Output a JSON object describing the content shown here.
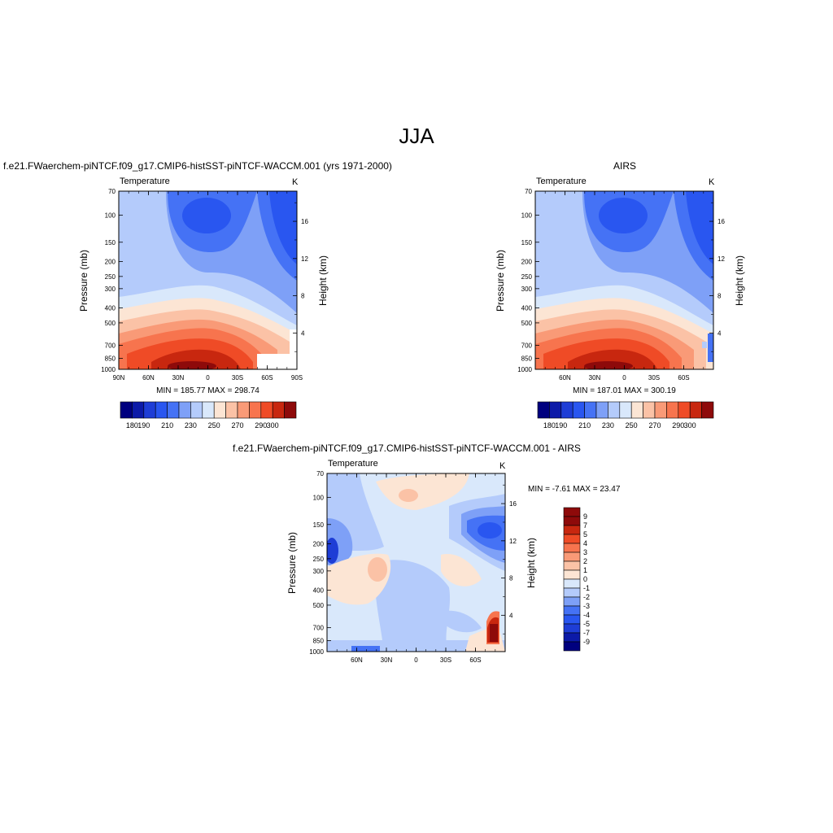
{
  "figure": {
    "title": "JJA"
  },
  "chart_data": [
    {
      "type": "heatmap",
      "id": "model",
      "title": "f.e21.FWaerchem-piNTCF.f09_g17.CMIP6-histSST-piNTCF-WACCM.001 (yrs 1971-2000)",
      "variable": "Temperature",
      "units": "K",
      "ylabel": "Pressure (mb)",
      "y2label": "Height (km)",
      "x_ticks": [
        "90N",
        "60N",
        "30N",
        "0",
        "30S",
        "60S",
        "90S"
      ],
      "y_ticks": [
        "70",
        "100",
        "150",
        "200",
        "250",
        "300",
        "400",
        "500",
        "700",
        "850",
        "1000"
      ],
      "y2_ticks": [
        "16",
        "12",
        "8",
        "4"
      ],
      "stats": "MIN = 185.77  MAX = 298.74",
      "min": 185.77,
      "max": 298.74,
      "colorbar_labels": [
        "180",
        "190",
        "210",
        "230",
        "250",
        "270",
        "290",
        "300"
      ]
    },
    {
      "type": "heatmap",
      "id": "obs",
      "title": "AIRS",
      "variable": "Temperature",
      "units": "K",
      "ylabel": "Pressure (mb)",
      "y2label": "Height (km)",
      "x_ticks": [
        "60N",
        "30N",
        "0",
        "30S",
        "60S"
      ],
      "y_ticks": [
        "70",
        "100",
        "150",
        "200",
        "250",
        "300",
        "400",
        "500",
        "700",
        "850",
        "1000"
      ],
      "y2_ticks": [
        "16",
        "12",
        "8",
        "4"
      ],
      "stats": "MIN = 187.01  MAX = 300.19",
      "min": 187.01,
      "max": 300.19,
      "colorbar_labels": [
        "180",
        "190",
        "210",
        "230",
        "250",
        "270",
        "290",
        "300"
      ]
    },
    {
      "type": "heatmap",
      "id": "diff",
      "title": "f.e21.FWaerchem-piNTCF.f09_g17.CMIP6-histSST-piNTCF-WACCM.001 - AIRS",
      "variable": "Temperature",
      "units": "K",
      "ylabel": "Pressure (mb)",
      "y2label": "Height (km)",
      "x_ticks": [
        "60N",
        "30N",
        "0",
        "30S",
        "60S"
      ],
      "y_ticks": [
        "70",
        "100",
        "150",
        "200",
        "250",
        "300",
        "400",
        "500",
        "700",
        "850",
        "1000"
      ],
      "y2_ticks": [
        "16",
        "12",
        "8",
        "4"
      ],
      "stats": "MIN =  -7.61  MAX =  23.47",
      "min": -7.61,
      "max": 23.47,
      "colorbar_labels": [
        "9",
        "7",
        "5",
        "4",
        "3",
        "2",
        "1",
        "0",
        "-1",
        "-2",
        "-3",
        "-4",
        "-5",
        "-7",
        "-9"
      ]
    }
  ],
  "colors": {
    "temp_scale": [
      "#00007f",
      "#0c1aa8",
      "#1e3dd6",
      "#2956f0",
      "#4572f5",
      "#7ea0f7",
      "#b4cbfb",
      "#d9e8fb",
      "#fce5d4",
      "#fbc2a6",
      "#f99a77",
      "#f7744e",
      "#ef4b26",
      "#c8270f",
      "#8e0a0a"
    ],
    "diff_scale": [
      "#8e0a0a",
      "#c8270f",
      "#ef4b26",
      "#f7744e",
      "#f99a77",
      "#fbc2a6",
      "#fce5d4",
      "#d9e8fb",
      "#b4cbfb",
      "#7ea0f7",
      "#4572f5",
      "#2956f0",
      "#1e3dd6",
      "#0c1aa8",
      "#00007f"
    ]
  }
}
